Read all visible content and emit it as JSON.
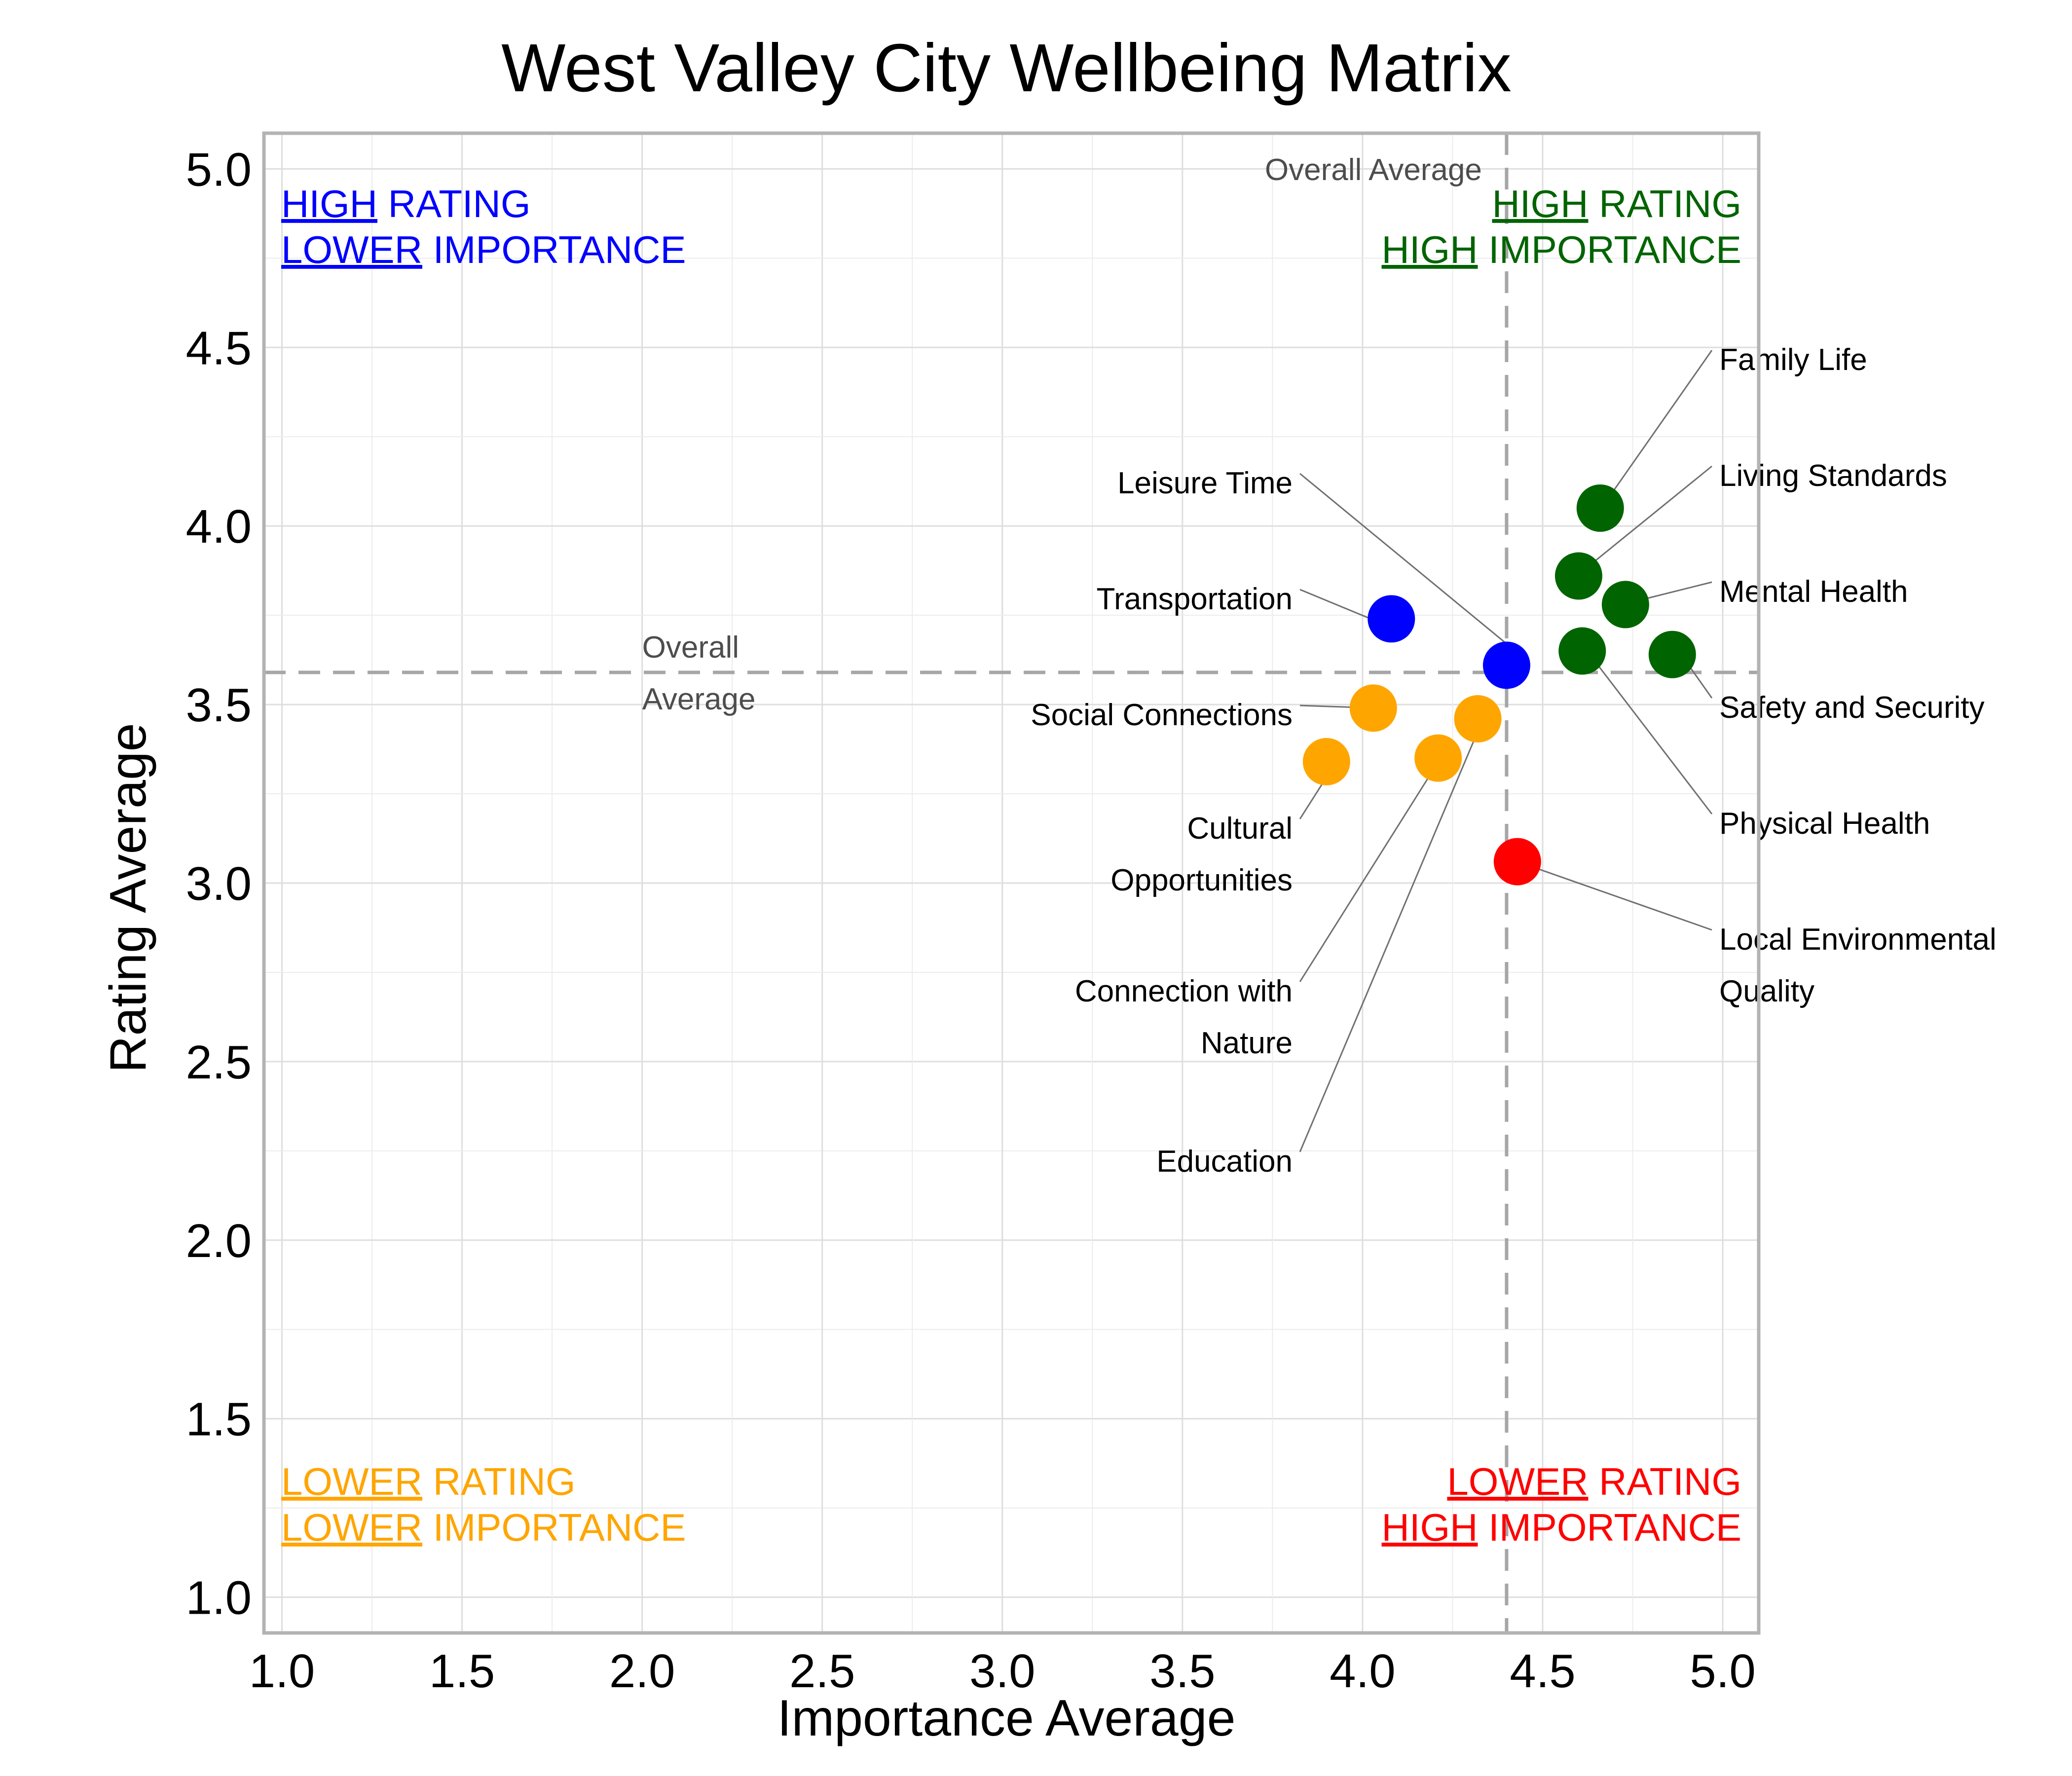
{
  "chart_data": {
    "type": "scatter",
    "title": "West Valley City Wellbeing Matrix",
    "xlabel": "Importance Average",
    "ylabel": "Rating Average",
    "xlim": [
      0.95,
      5.1
    ],
    "ylim": [
      0.9,
      5.1
    ],
    "xticks": [
      "1.0",
      "1.5",
      "2.0",
      "2.5",
      "3.0",
      "3.5",
      "4.0",
      "4.5",
      "5.0"
    ],
    "yticks": [
      "1.0",
      "1.5",
      "2.0",
      "2.5",
      "3.0",
      "3.5",
      "4.0",
      "4.5",
      "5.0"
    ],
    "grid": true,
    "reference_lines": {
      "x_average": 4.4,
      "y_average": 3.59,
      "x_average_label": "Overall Average",
      "y_average_label": [
        "Overall",
        "Average"
      ]
    },
    "quadrants": [
      {
        "position": "top-left",
        "color": "#0000ff",
        "lines": [
          {
            "underlined": "HIGH",
            "rest": " RATING"
          },
          {
            "underlined": "LOWER",
            "rest": " IMPORTANCE"
          }
        ]
      },
      {
        "position": "top-right",
        "color": "#006400",
        "lines": [
          {
            "underlined": "HIGH",
            "rest": " RATING"
          },
          {
            "underlined": "HIGH",
            "rest": " IMPORTANCE"
          }
        ]
      },
      {
        "position": "bottom-left",
        "color": "#ffa500",
        "lines": [
          {
            "underlined": "LOWER",
            "rest": " RATING"
          },
          {
            "underlined": "LOWER",
            "rest": " IMPORTANCE"
          }
        ]
      },
      {
        "position": "bottom-right",
        "color": "#ff0000",
        "lines": [
          {
            "underlined": "LOWER",
            "rest": " RATING"
          },
          {
            "underlined": "HIGH",
            "rest": " IMPORTANCE"
          }
        ]
      }
    ],
    "points": [
      {
        "label": [
          "Family Life"
        ],
        "x": 4.66,
        "y": 4.05,
        "color": "#006400"
      },
      {
        "label": [
          "Living Standards"
        ],
        "x": 4.6,
        "y": 3.86,
        "color": "#006400"
      },
      {
        "label": [
          "Mental Health"
        ],
        "x": 4.73,
        "y": 3.78,
        "color": "#006400"
      },
      {
        "label": [
          "Safety and Security"
        ],
        "x": 4.86,
        "y": 3.64,
        "color": "#006400"
      },
      {
        "label": [
          "Physical Health"
        ],
        "x": 4.61,
        "y": 3.65,
        "color": "#006400"
      },
      {
        "label": [
          "Local Environmental",
          "Quality"
        ],
        "x": 4.43,
        "y": 3.06,
        "color": "#ff0000"
      },
      {
        "label": [
          "Leisure Time"
        ],
        "x": 4.4,
        "y": 3.61,
        "color": "#0000ff"
      },
      {
        "label": [
          "Transportation"
        ],
        "x": 4.08,
        "y": 3.74,
        "color": "#0000ff"
      },
      {
        "label": [
          "Social Connections"
        ],
        "x": 4.03,
        "y": 3.49,
        "color": "#ffa500"
      },
      {
        "label": [
          "Cultural",
          "Opportunities"
        ],
        "x": 3.9,
        "y": 3.34,
        "color": "#ffa500"
      },
      {
        "label": [
          "Connection with",
          "Nature"
        ],
        "x": 4.21,
        "y": 3.35,
        "color": "#ffa500"
      },
      {
        "label": [
          "Education"
        ],
        "x": 4.32,
        "y": 3.46,
        "color": "#ffa500"
      }
    ]
  }
}
